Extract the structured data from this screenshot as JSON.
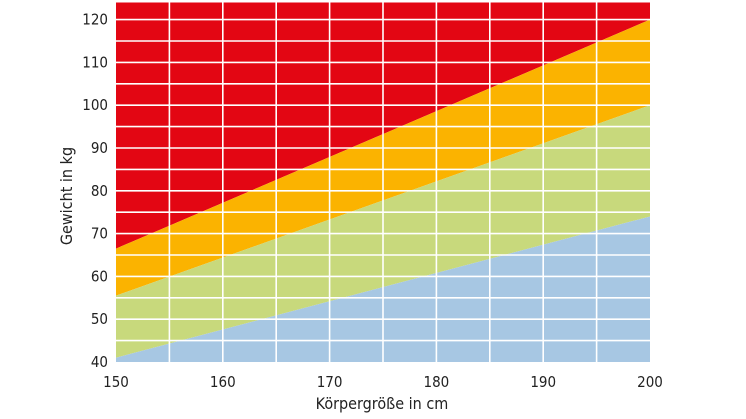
{
  "chart_data": {
    "type": "area",
    "title": "",
    "xlabel": "Körpergröße in cm",
    "ylabel": "Gewicht in kg",
    "xlim": [
      150,
      200
    ],
    "ylim": [
      40,
      124
    ],
    "x_ticks": [
      150,
      160,
      170,
      180,
      190,
      200
    ],
    "y_ticks": [
      40,
      50,
      60,
      70,
      80,
      90,
      100,
      110,
      120
    ],
    "grid": true,
    "x": [
      150,
      200
    ],
    "boundaries": [
      {
        "name": "lower",
        "y": [
          41,
          74
        ]
      },
      {
        "name": "green-orange",
        "y": [
          55.5,
          100
        ]
      },
      {
        "name": "orange-red",
        "y": [
          66.5,
          120
        ]
      }
    ],
    "colors": {
      "blue": "#a7c7e3",
      "green": "#c8d97c",
      "orange": "#fbb300",
      "red": "#e30613",
      "grid": "#ffffff"
    }
  }
}
